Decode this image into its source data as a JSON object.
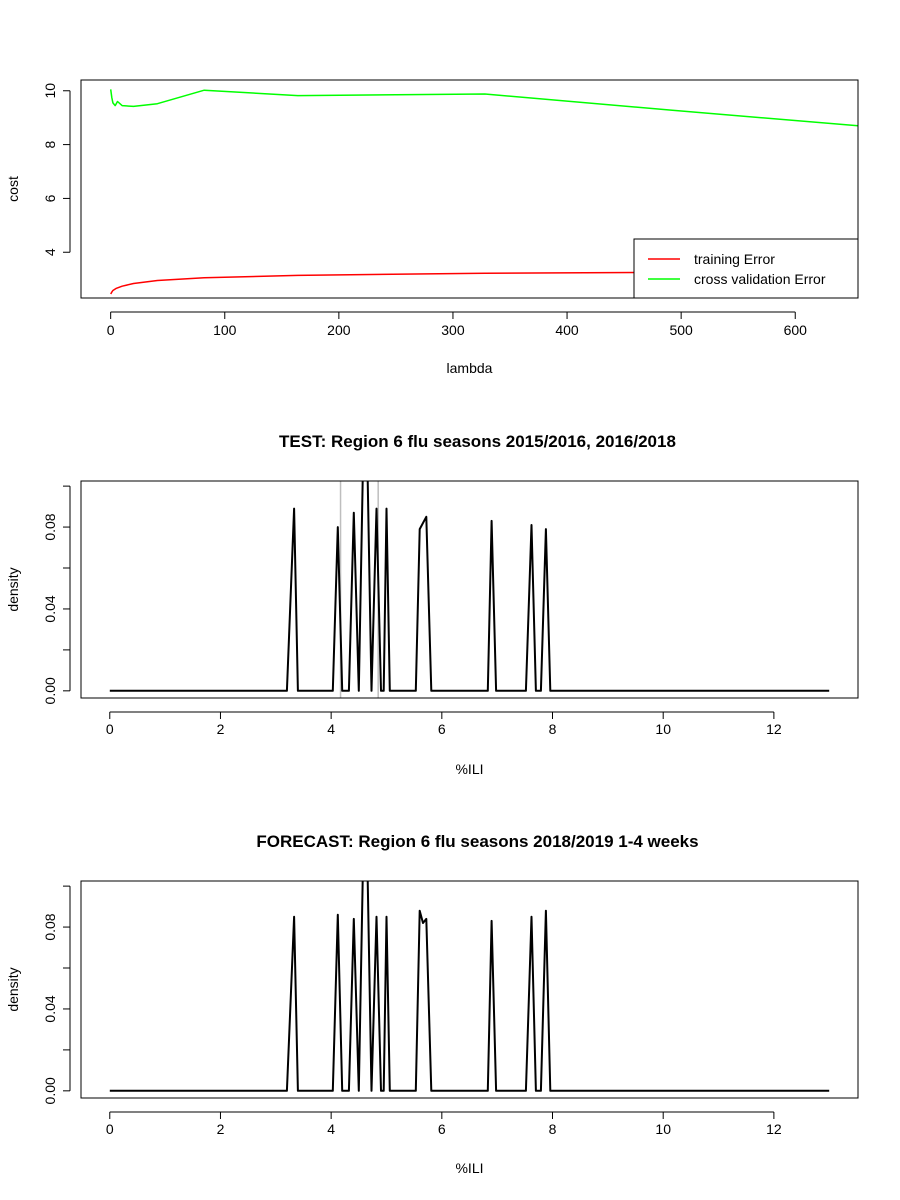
{
  "chart_data": [
    {
      "type": "line",
      "title": "",
      "xlabel": "lambda",
      "ylabel": "cost",
      "xlim": [
        -26,
        655
      ],
      "ylim": [
        2.3,
        10.4
      ],
      "xticks": [
        0,
        100,
        200,
        300,
        400,
        500,
        600
      ],
      "yticks": [
        4,
        6,
        8,
        10
      ],
      "legend": {
        "position": "bottom-right",
        "entries": [
          "training Error",
          "cross validation Error"
        ]
      },
      "series": [
        {
          "name": "training Error",
          "color": "#ff0000",
          "x": [
            0,
            1,
            2,
            5,
            10,
            20,
            41,
            82,
            164,
            328,
            491,
            655
          ],
          "y": [
            2.45,
            2.52,
            2.58,
            2.66,
            2.74,
            2.84,
            2.95,
            3.05,
            3.14,
            3.22,
            3.25,
            3.27
          ]
        },
        {
          "name": "cross validation Error",
          "color": "#00ff00",
          "x": [
            0,
            1,
            2,
            4,
            6,
            10,
            20,
            41,
            82,
            164,
            328,
            491,
            655
          ],
          "y": [
            10.05,
            9.75,
            9.55,
            9.45,
            9.6,
            9.45,
            9.42,
            9.52,
            10.02,
            9.82,
            9.88,
            9.28,
            8.7
          ]
        }
      ]
    },
    {
      "type": "line",
      "title": "TEST: Region 6  flu seasons 2015/2016, 2016/2018",
      "xlabel": "%ILI",
      "ylabel": "density",
      "xlim": [
        -0.52,
        13.52
      ],
      "ylim": [
        -0.0035,
        0.1025
      ],
      "xticks": [
        0,
        2,
        4,
        6,
        8,
        10,
        12
      ],
      "yticks": [
        0.0,
        0.04,
        0.08
      ],
      "yticklabels": [
        "0.00",
        "0.04",
        "0.08"
      ],
      "vlines": [
        4.17,
        4.85
      ],
      "series": [
        {
          "name": "",
          "color": "#000000",
          "x": [
            0,
            3.2,
            3.33,
            3.4,
            4.03,
            4.12,
            4.2,
            4.32,
            4.41,
            4.5,
            4.57,
            4.6,
            4.66,
            4.73,
            4.82,
            4.9,
            4.95,
            5.0,
            5.06,
            5.53,
            5.6,
            5.72,
            5.81,
            6.83,
            6.9,
            6.98,
            7.52,
            7.62,
            7.7,
            7.79,
            7.88,
            7.96,
            13
          ],
          "y": [
            0,
            0,
            0.089,
            0,
            0,
            0.08,
            0,
            0,
            0.087,
            0,
            0.103,
            0.103,
            0.103,
            0,
            0.089,
            0,
            0,
            0.089,
            0,
            0,
            0.079,
            0.085,
            0,
            0,
            0.083,
            0,
            0,
            0.081,
            0,
            0,
            0.079,
            0,
            0
          ]
        }
      ]
    },
    {
      "type": "line",
      "title": "FORECAST: Region 6 flu seasons 2018/2019 1-4 weeks",
      "xlabel": "%ILI",
      "ylabel": "density",
      "xlim": [
        -0.52,
        13.52
      ],
      "ylim": [
        -0.0035,
        0.1025
      ],
      "xticks": [
        0,
        2,
        4,
        6,
        8,
        10,
        12
      ],
      "yticks": [
        0.0,
        0.04,
        0.08
      ],
      "yticklabels": [
        "0.00",
        "0.04",
        "0.08"
      ],
      "vlines": [],
      "series": [
        {
          "name": "",
          "color": "#000000",
          "x": [
            0,
            3.2,
            3.33,
            3.4,
            4.03,
            4.12,
            4.2,
            4.32,
            4.41,
            4.5,
            4.57,
            4.6,
            4.66,
            4.73,
            4.82,
            4.9,
            4.95,
            5.0,
            5.06,
            5.53,
            5.6,
            5.66,
            5.72,
            5.81,
            6.83,
            6.9,
            6.98,
            7.52,
            7.62,
            7.7,
            7.79,
            7.88,
            7.96,
            13
          ],
          "y": [
            0,
            0,
            0.085,
            0,
            0,
            0.086,
            0,
            0,
            0.084,
            0,
            0.103,
            0.103,
            0.103,
            0,
            0.085,
            0,
            0,
            0.085,
            0,
            0,
            0.088,
            0.082,
            0.084,
            0,
            0,
            0.083,
            0,
            0,
            0.085,
            0,
            0,
            0.088,
            0,
            0
          ]
        }
      ]
    }
  ]
}
